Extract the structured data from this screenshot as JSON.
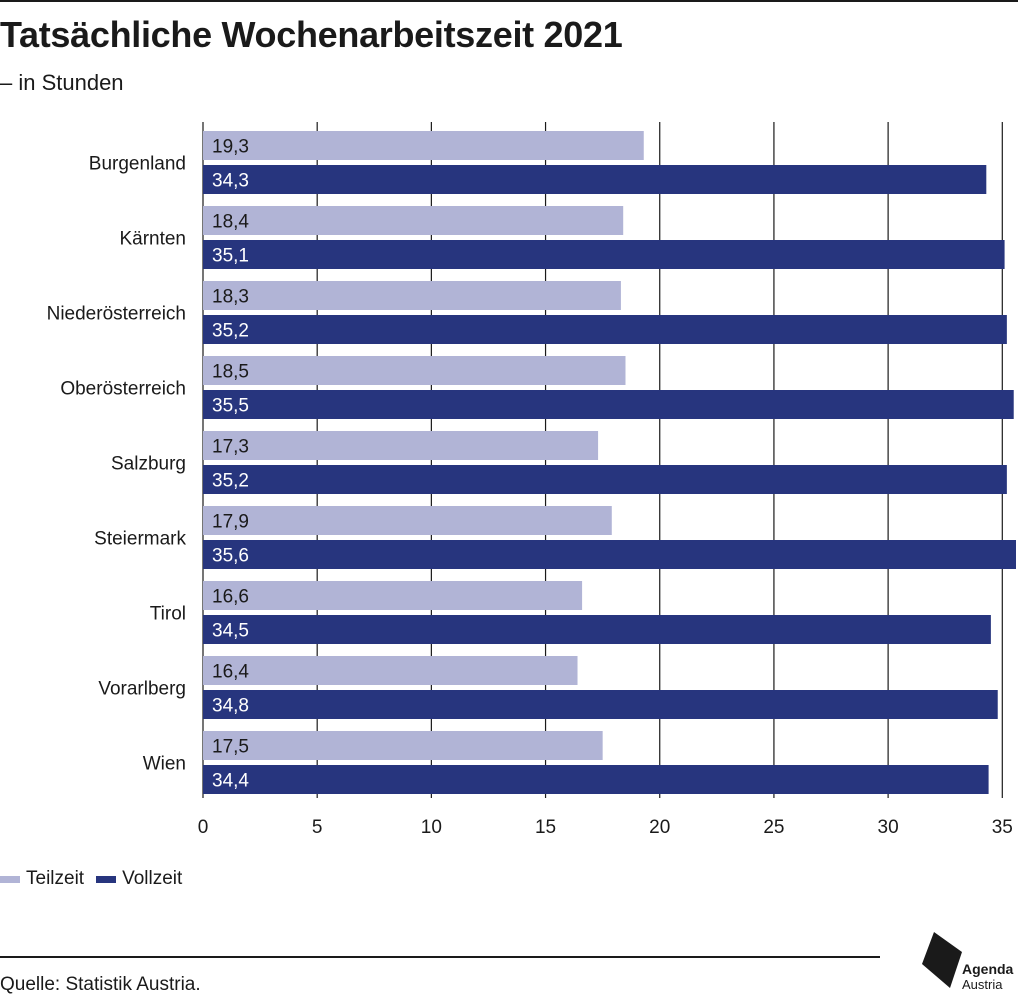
{
  "title": "Tatsächliche Wochenarbeitszeit 2021",
  "subtitle": "– in Stunden",
  "source": "Quelle: Statistik Austria.",
  "logo": {
    "line1": "Agenda",
    "line2": "Austria"
  },
  "colors": {
    "teilzeit": "#b1b4d6",
    "vollzeit": "#27357e",
    "text": "#1a1a1a"
  },
  "legend": [
    {
      "label": "Teilzeit",
      "color": "#b1b4d6"
    },
    {
      "label": "Vollzeit",
      "color": "#27357e"
    }
  ],
  "chart_data": {
    "type": "bar",
    "orientation": "horizontal",
    "categories": [
      "Burgenland",
      "Kärnten",
      "Niederösterreich",
      "Oberösterreich",
      "Salzburg",
      "Steiermark",
      "Tirol",
      "Vorarlberg",
      "Wien"
    ],
    "series": [
      {
        "name": "Teilzeit",
        "values": [
          19.3,
          18.4,
          18.3,
          18.5,
          17.3,
          17.9,
          16.6,
          16.4,
          17.5
        ],
        "labels": [
          "19,3",
          "18,4",
          "18,3",
          "18,5",
          "17,3",
          "17,9",
          "16,6",
          "16,4",
          "17,5"
        ]
      },
      {
        "name": "Vollzeit",
        "values": [
          34.3,
          35.1,
          35.2,
          35.5,
          35.2,
          35.6,
          34.5,
          34.8,
          34.4
        ],
        "labels": [
          "34,3",
          "35,1",
          "35,2",
          "35,5",
          "35,2",
          "35,6",
          "34,5",
          "34,8",
          "34,4"
        ]
      }
    ],
    "xlim": [
      0,
      35.6
    ],
    "xticks": [
      0,
      5,
      10,
      15,
      20,
      25,
      30,
      35
    ],
    "grid": true,
    "legend_position": "bottom-left"
  }
}
